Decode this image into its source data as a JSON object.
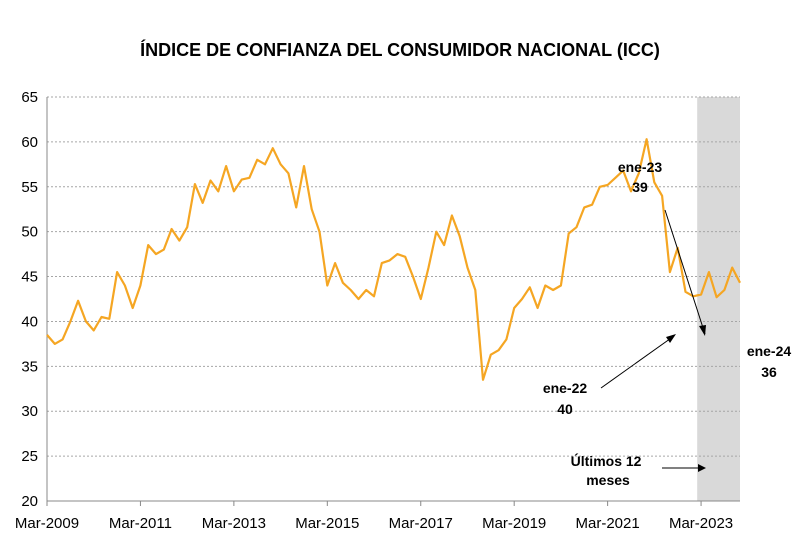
{
  "chart_data": {
    "type": "line",
    "title": "ÍNDICE DE CONFIANZA DEL CONSUMIDOR NACIONAL (ICC)",
    "xlabel": "",
    "ylabel": "",
    "ylim": [
      20,
      65
    ],
    "y_ticks": [
      20,
      25,
      30,
      35,
      40,
      45,
      50,
      55,
      60,
      65
    ],
    "x_ticks": [
      "Mar-2009",
      "Mar-2011",
      "Mar-2013",
      "Mar-2015",
      "Mar-2017",
      "Mar-2019",
      "Mar-2021",
      "Mar-2023"
    ],
    "x_range": [
      "2009-03",
      "2024-01"
    ],
    "grid": true,
    "line_color": "#F5A623",
    "shade_color": "#D9D9D9",
    "shaded_period": {
      "from": "2023-02",
      "to": "2024-01",
      "label": "Últimos 12 meses"
    },
    "series": [
      {
        "values": [
          {
            "x": "2009-03",
            "y": 38.5
          },
          {
            "x": "2009-05",
            "y": 37.5
          },
          {
            "x": "2009-07",
            "y": 38.0
          },
          {
            "x": "2009-09",
            "y": 40.0
          },
          {
            "x": "2009-11",
            "y": 42.3
          },
          {
            "x": "2010-01",
            "y": 40.0
          },
          {
            "x": "2010-03",
            "y": 39.0
          },
          {
            "x": "2010-05",
            "y": 40.5
          },
          {
            "x": "2010-07",
            "y": 40.3
          },
          {
            "x": "2010-09",
            "y": 45.5
          },
          {
            "x": "2010-11",
            "y": 44.0
          },
          {
            "x": "2011-01",
            "y": 41.5
          },
          {
            "x": "2011-03",
            "y": 44.0
          },
          {
            "x": "2011-05",
            "y": 48.5
          },
          {
            "x": "2011-07",
            "y": 47.5
          },
          {
            "x": "2011-09",
            "y": 48.0
          },
          {
            "x": "2011-11",
            "y": 50.3
          },
          {
            "x": "2012-01",
            "y": 49.0
          },
          {
            "x": "2012-03",
            "y": 50.5
          },
          {
            "x": "2012-05",
            "y": 55.3
          },
          {
            "x": "2012-07",
            "y": 53.2
          },
          {
            "x": "2012-09",
            "y": 55.7
          },
          {
            "x": "2012-11",
            "y": 54.5
          },
          {
            "x": "2013-01",
            "y": 57.3
          },
          {
            "x": "2013-03",
            "y": 54.5
          },
          {
            "x": "2013-05",
            "y": 55.8
          },
          {
            "x": "2013-07",
            "y": 56.0
          },
          {
            "x": "2013-09",
            "y": 58.0
          },
          {
            "x": "2013-11",
            "y": 57.5
          },
          {
            "x": "2014-01",
            "y": 59.3
          },
          {
            "x": "2014-03",
            "y": 57.5
          },
          {
            "x": "2014-05",
            "y": 56.5
          },
          {
            "x": "2014-07",
            "y": 52.7
          },
          {
            "x": "2014-09",
            "y": 57.3
          },
          {
            "x": "2014-11",
            "y": 52.5
          },
          {
            "x": "2015-01",
            "y": 50.0
          },
          {
            "x": "2015-03",
            "y": 44.0
          },
          {
            "x": "2015-05",
            "y": 46.5
          },
          {
            "x": "2015-07",
            "y": 44.3
          },
          {
            "x": "2015-09",
            "y": 43.5
          },
          {
            "x": "2015-11",
            "y": 42.5
          },
          {
            "x": "2016-01",
            "y": 43.5
          },
          {
            "x": "2016-03",
            "y": 42.8
          },
          {
            "x": "2016-05",
            "y": 46.5
          },
          {
            "x": "2016-07",
            "y": 46.8
          },
          {
            "x": "2016-09",
            "y": 47.5
          },
          {
            "x": "2016-11",
            "y": 47.2
          },
          {
            "x": "2017-01",
            "y": 45.0
          },
          {
            "x": "2017-03",
            "y": 42.5
          },
          {
            "x": "2017-05",
            "y": 46.0
          },
          {
            "x": "2017-07",
            "y": 50.0
          },
          {
            "x": "2017-09",
            "y": 48.5
          },
          {
            "x": "2017-11",
            "y": 51.8
          },
          {
            "x": "2018-01",
            "y": 49.5
          },
          {
            "x": "2018-03",
            "y": 46.0
          },
          {
            "x": "2018-05",
            "y": 43.5
          },
          {
            "x": "2018-07",
            "y": 33.5
          },
          {
            "x": "2018-09",
            "y": 36.3
          },
          {
            "x": "2018-11",
            "y": 36.8
          },
          {
            "x": "2019-01",
            "y": 38.0
          },
          {
            "x": "2019-03",
            "y": 41.5
          },
          {
            "x": "2019-05",
            "y": 42.5
          },
          {
            "x": "2019-07",
            "y": 43.8
          },
          {
            "x": "2019-09",
            "y": 41.5
          },
          {
            "x": "2019-11",
            "y": 44.0
          },
          {
            "x": "2020-01",
            "y": 43.5
          },
          {
            "x": "2020-03",
            "y": 44.0
          },
          {
            "x": "2020-05",
            "y": 49.8
          },
          {
            "x": "2020-07",
            "y": 50.5
          },
          {
            "x": "2020-09",
            "y": 52.7
          },
          {
            "x": "2020-11",
            "y": 53.0
          },
          {
            "x": "2021-01",
            "y": 55.0
          },
          {
            "x": "2021-03",
            "y": 55.2
          },
          {
            "x": "2021-05",
            "y": 56.0
          },
          {
            "x": "2021-07",
            "y": 56.8
          },
          {
            "x": "2021-09",
            "y": 54.5
          },
          {
            "x": "2021-11",
            "y": 56.5
          },
          {
            "x": "2022-01",
            "y": 60.3
          },
          {
            "x": "2022-03",
            "y": 55.5
          },
          {
            "x": "2022-05",
            "y": 54.0
          },
          {
            "x": "2022-07",
            "y": 45.5
          },
          {
            "x": "2022-09",
            "y": 48.2
          },
          {
            "x": "2022-11",
            "y": 43.3
          },
          {
            "x": "2023-01",
            "y": 42.8
          },
          {
            "x": "2023-03",
            "y": 43.0
          },
          {
            "x": "2023-05",
            "y": 45.5
          },
          {
            "x": "2023-07",
            "y": 42.7
          },
          {
            "x": "2023-09",
            "y": 43.5
          },
          {
            "x": "2023-11",
            "y": 46.0
          },
          {
            "x": "2024-01",
            "y": 44.3
          }
        ]
      }
    ],
    "annotations": [
      {
        "label": "ene-22",
        "value": "40"
      },
      {
        "label": "ene-23",
        "value": "39"
      },
      {
        "label": "ene-24",
        "value": "36"
      }
    ]
  }
}
